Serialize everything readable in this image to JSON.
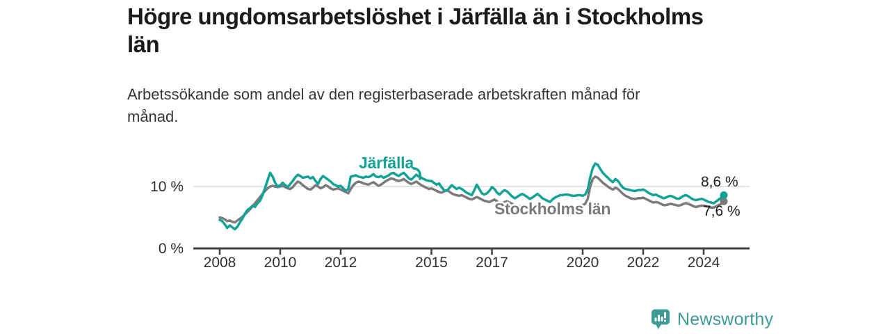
{
  "chart_data": {
    "type": "line",
    "title": "Högre ungdomsarbetslöshet i Järfälla än i Stockholms\nlän",
    "subtitle": "Arbetssökande som andel av den registerbaserade arbetskraften månad för\nmånad.",
    "unit": "%",
    "frequency": "monthly",
    "start": {
      "year": 2008,
      "month": 1
    },
    "x_ticks": [
      2008,
      2010,
      2012,
      2015,
      2017,
      2020,
      2022,
      2024
    ],
    "y_ticks": [
      {
        "value": 0,
        "label": "0 %"
      },
      {
        "value": 10,
        "label": "10 %"
      }
    ],
    "ylim": [
      0,
      15
    ],
    "x_range_years": [
      2007.1,
      2025.5
    ],
    "grid": "horizontal-only",
    "legend": "inline-labels",
    "colors": {
      "gridline": "#dcdcdc",
      "axis": "#414141",
      "tick_text": "#2f2f2f"
    },
    "series": [
      {
        "name": "Järfälla",
        "color": "#12a296",
        "end_label": "8,6 %",
        "end_value": 8.6,
        "values": [
          4.6,
          4.4,
          3.9,
          3.3,
          3.7,
          3.4,
          3.1,
          3.5,
          4.2,
          4.8,
          5.6,
          6.2,
          6.5,
          6.9,
          6.7,
          7.3,
          7.7,
          8.6,
          9.8,
          11.0,
          12.2,
          11.6,
          10.6,
          10.0,
          10.2,
          10.6,
          10.2,
          9.9,
          10.4,
          10.9,
          11.5,
          11.9,
          11.7,
          11.4,
          11.5,
          11.6,
          11.3,
          11.5,
          10.9,
          10.4,
          11.2,
          11.7,
          11.4,
          11.1,
          10.8,
          10.4,
          10.2,
          10.0,
          10.1,
          9.7,
          9.3,
          9.6,
          11.6,
          11.7,
          11.8,
          11.6,
          11.5,
          11.4,
          11.6,
          11.5,
          11.7,
          12.0,
          11.6,
          11.5,
          11.7,
          11.4,
          11.6,
          11.8,
          12.1,
          12.2,
          11.9,
          11.7,
          12.0,
          12.2,
          11.8,
          11.3,
          11.1,
          11.5,
          11.9,
          11.6,
          11.4,
          11.2,
          11.0,
          10.9,
          10.9,
          10.6,
          10.3,
          10.5,
          9.9,
          9.4,
          9.3,
          9.7,
          10.2,
          9.9,
          9.6,
          9.8,
          9.6,
          9.3,
          9.0,
          8.8,
          8.6,
          9.4,
          10.3,
          9.6,
          8.9,
          8.7,
          8.9,
          9.3,
          9.9,
          9.6,
          9.0,
          8.7,
          9.1,
          9.4,
          9.2,
          8.8,
          8.4,
          8.1,
          8.3,
          8.6,
          8.8,
          8.6,
          8.3,
          8.0,
          8.2,
          8.5,
          8.8,
          8.5,
          8.1,
          7.9,
          7.7,
          7.5,
          7.9,
          8.2,
          8.4,
          8.6,
          8.6,
          8.7,
          8.7,
          8.6,
          8.5,
          8.5,
          8.6,
          8.6,
          8.5,
          8.7,
          9.5,
          11.5,
          13.0,
          13.7,
          13.5,
          12.8,
          12.2,
          11.8,
          11.4,
          11.0,
          10.7,
          11.2,
          10.9,
          10.3,
          9.8,
          9.6,
          9.5,
          9.4,
          9.3,
          9.3,
          9.4,
          9.4,
          9.5,
          9.3,
          9.0,
          8.8,
          8.6,
          8.7,
          8.5,
          8.3,
          8.1,
          8.2,
          8.4,
          8.5,
          8.3,
          8.1,
          8.0,
          8.2,
          8.5,
          8.6,
          8.4,
          8.1,
          7.9,
          7.8,
          7.9,
          8.0,
          7.9,
          7.7,
          7.5,
          7.4,
          7.3,
          7.6,
          7.9,
          8.2,
          8.6
        ]
      },
      {
        "name": "Stockholms län",
        "color": "#7b7b7b",
        "end_label": "7,6 %",
        "end_value": 7.6,
        "values": [
          5.0,
          4.9,
          4.7,
          4.4,
          4.5,
          4.3,
          4.2,
          4.5,
          4.8,
          5.1,
          5.5,
          5.9,
          6.3,
          6.8,
          7.3,
          7.8,
          8.3,
          8.8,
          9.3,
          9.7,
          10.0,
          10.1,
          10.0,
          9.9,
          10.0,
          10.1,
          9.9,
          9.7,
          9.6,
          9.9,
          10.4,
          10.8,
          10.6,
          10.2,
          9.9,
          9.6,
          9.5,
          9.8,
          10.2,
          10.0,
          9.7,
          9.9,
          10.2,
          10.0,
          9.7,
          9.5,
          9.6,
          9.7,
          9.5,
          9.3,
          9.1,
          8.9,
          9.6,
          10.2,
          10.6,
          10.8,
          10.7,
          10.5,
          10.4,
          10.3,
          10.5,
          10.7,
          10.4,
          10.1,
          10.3,
          10.6,
          10.9,
          11.1,
          11.3,
          11.2,
          11.0,
          10.9,
          11.0,
          11.2,
          10.9,
          10.6,
          10.4,
          10.6,
          10.8,
          10.5,
          10.2,
          10.0,
          9.8,
          9.6,
          9.7,
          9.5,
          9.3,
          9.1,
          9.0,
          9.2,
          9.4,
          9.2,
          8.9,
          8.7,
          8.6,
          8.5,
          8.6,
          8.4,
          8.2,
          8.0,
          7.9,
          8.1,
          8.3,
          8.1,
          7.9,
          7.7,
          7.6,
          7.5,
          7.7,
          7.9,
          7.6,
          7.4,
          7.3,
          7.5,
          7.6,
          7.4,
          7.2,
          7.0,
          6.9,
          6.8,
          6.9,
          7.0,
          6.8,
          6.6,
          6.5,
          6.7,
          6.9,
          6.7,
          6.5,
          6.4,
          6.3,
          6.3,
          6.4,
          6.5,
          6.5,
          6.6,
          6.6,
          6.8,
          6.9,
          6.8,
          6.7,
          6.7,
          6.8,
          6.9,
          7.0,
          7.2,
          8.0,
          10.0,
          11.2,
          11.6,
          11.4,
          11.0,
          10.6,
          10.3,
          10.0,
          9.7,
          9.5,
          9.8,
          9.6,
          9.2,
          8.8,
          8.5,
          8.3,
          8.1,
          8.0,
          8.0,
          8.1,
          8.1,
          8.2,
          8.0,
          7.8,
          7.6,
          7.4,
          7.5,
          7.4,
          7.2,
          7.0,
          7.0,
          7.1,
          7.2,
          7.1,
          7.0,
          6.9,
          7.0,
          7.2,
          7.3,
          7.2,
          7.0,
          6.8,
          6.7,
          6.8,
          6.9,
          6.9,
          6.8,
          6.7,
          6.6,
          6.6,
          6.8,
          7.0,
          7.2,
          7.6
        ]
      }
    ]
  },
  "footer": {
    "brand": "Newsworthy",
    "brand_color": "#3d9a94"
  }
}
